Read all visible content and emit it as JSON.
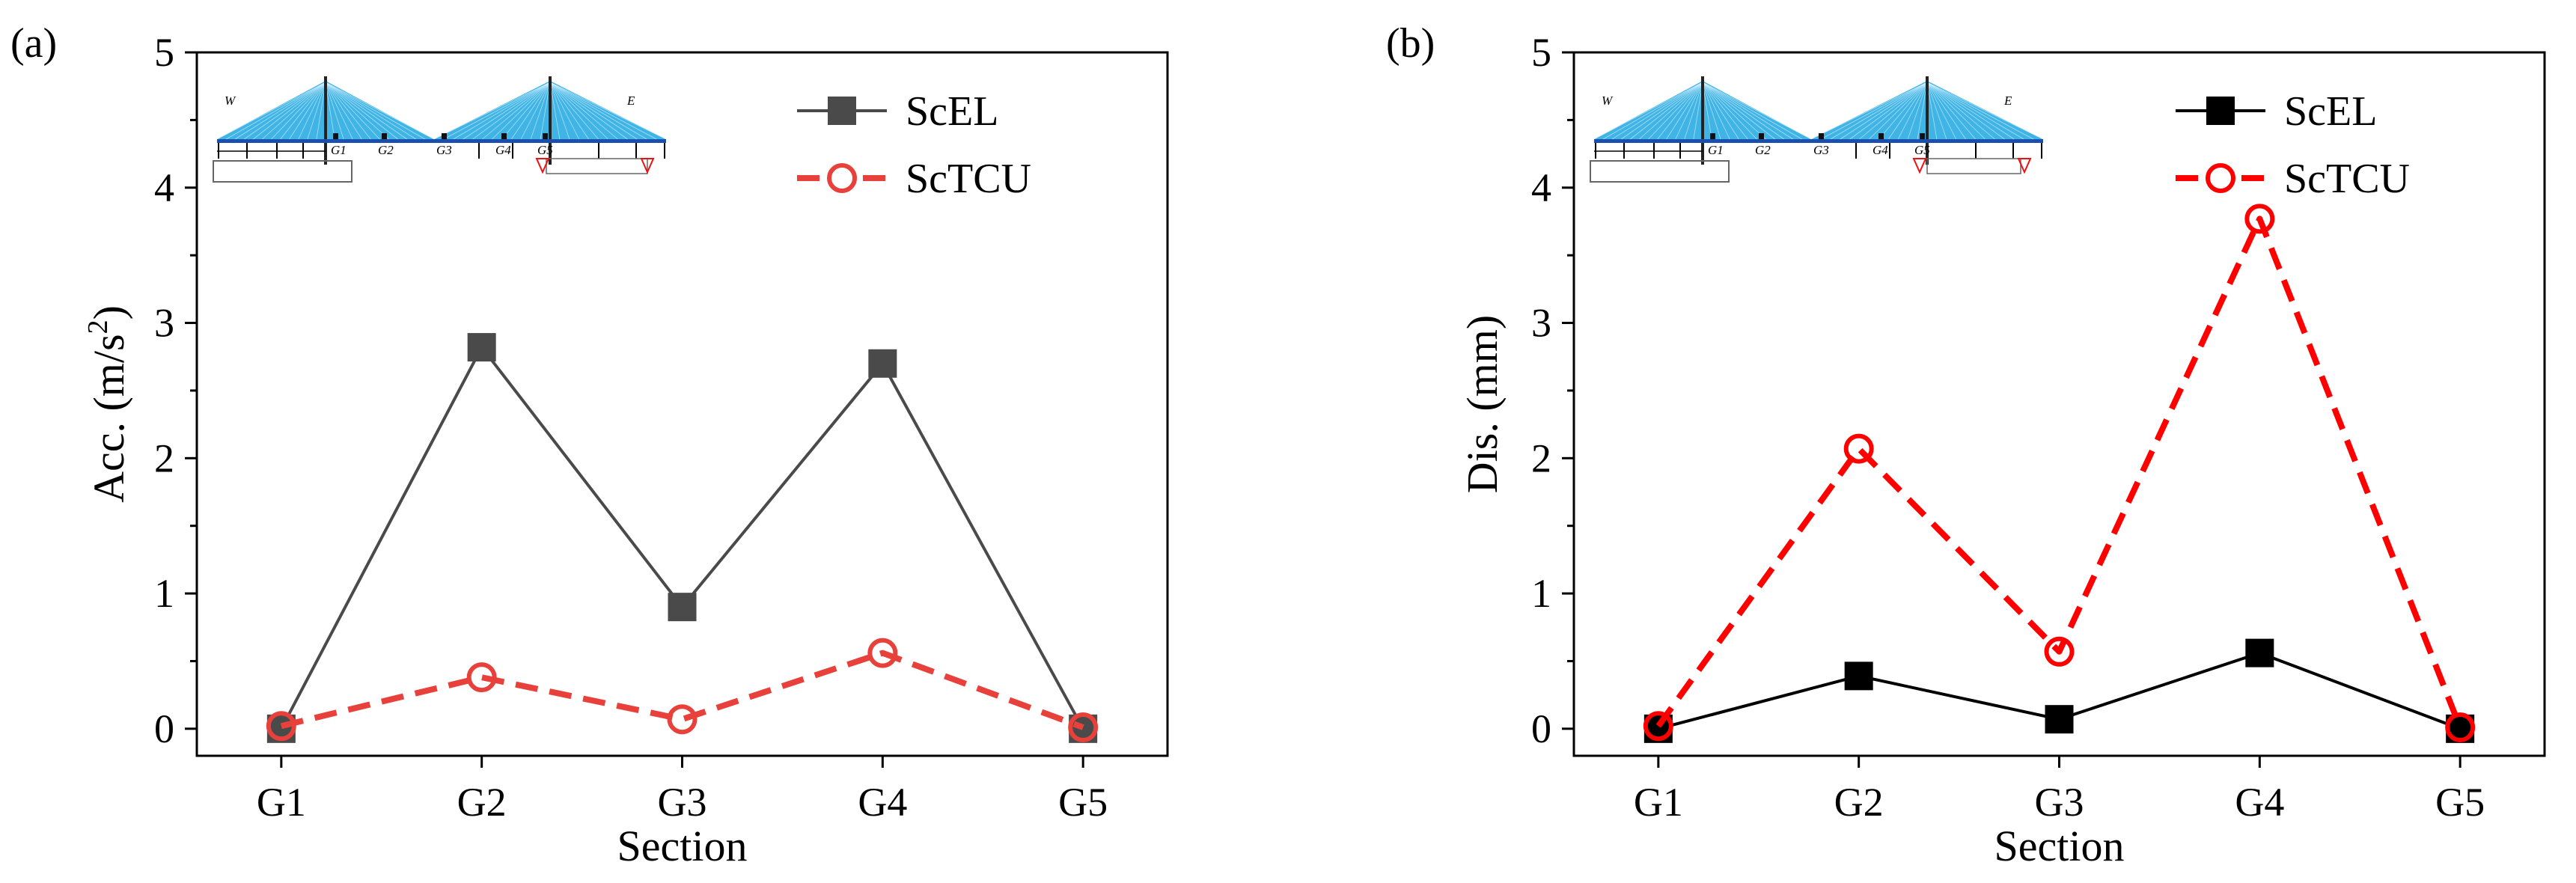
{
  "chart_data": [
    {
      "panel_label": "(a)",
      "type": "line",
      "categories": [
        "G1",
        "G2",
        "G3",
        "G4",
        "G5"
      ],
      "xlabel": "Section",
      "ylabel": "Acc. (m/s",
      "ylabel_sup": "2",
      "ylabel_close": ")",
      "ylim": [
        -0.2,
        5
      ],
      "yticks": [
        0,
        1,
        2,
        3,
        4,
        5
      ],
      "inset_labels": [
        "W",
        "E",
        "G1",
        "G2",
        "G3",
        "G4",
        "G5"
      ],
      "series": [
        {
          "name": "ScEL",
          "values": [
            0,
            2.82,
            0.9,
            2.7,
            0
          ],
          "color": "#4a4a4a",
          "marker": "square",
          "dash": "solid"
        },
        {
          "name": "ScTCU",
          "values": [
            0.02,
            0.38,
            0.07,
            0.56,
            0.01
          ],
          "color": "#e8413c",
          "marker": "circle",
          "dash": "dashed"
        }
      ]
    },
    {
      "panel_label": "(b)",
      "type": "line",
      "categories": [
        "G1",
        "G2",
        "G3",
        "G4",
        "G5"
      ],
      "xlabel": "Section",
      "ylabel": "Dis. (mm)",
      "ylabel_sup": "",
      "ylabel_close": "",
      "ylim": [
        -0.2,
        5
      ],
      "yticks": [
        0,
        1,
        2,
        3,
        4,
        5
      ],
      "inset_labels": [
        "W",
        "E",
        "G1",
        "G2",
        "G3",
        "G4",
        "G5"
      ],
      "series": [
        {
          "name": "ScEL",
          "values": [
            0,
            0.39,
            0.07,
            0.56,
            0
          ],
          "color": "#000000",
          "marker": "square",
          "dash": "solid"
        },
        {
          "name": "ScTCU",
          "values": [
            0.02,
            2.07,
            0.57,
            3.77,
            0.01
          ],
          "color": "#ff0000",
          "marker": "circle",
          "dash": "dashed"
        }
      ]
    }
  ]
}
